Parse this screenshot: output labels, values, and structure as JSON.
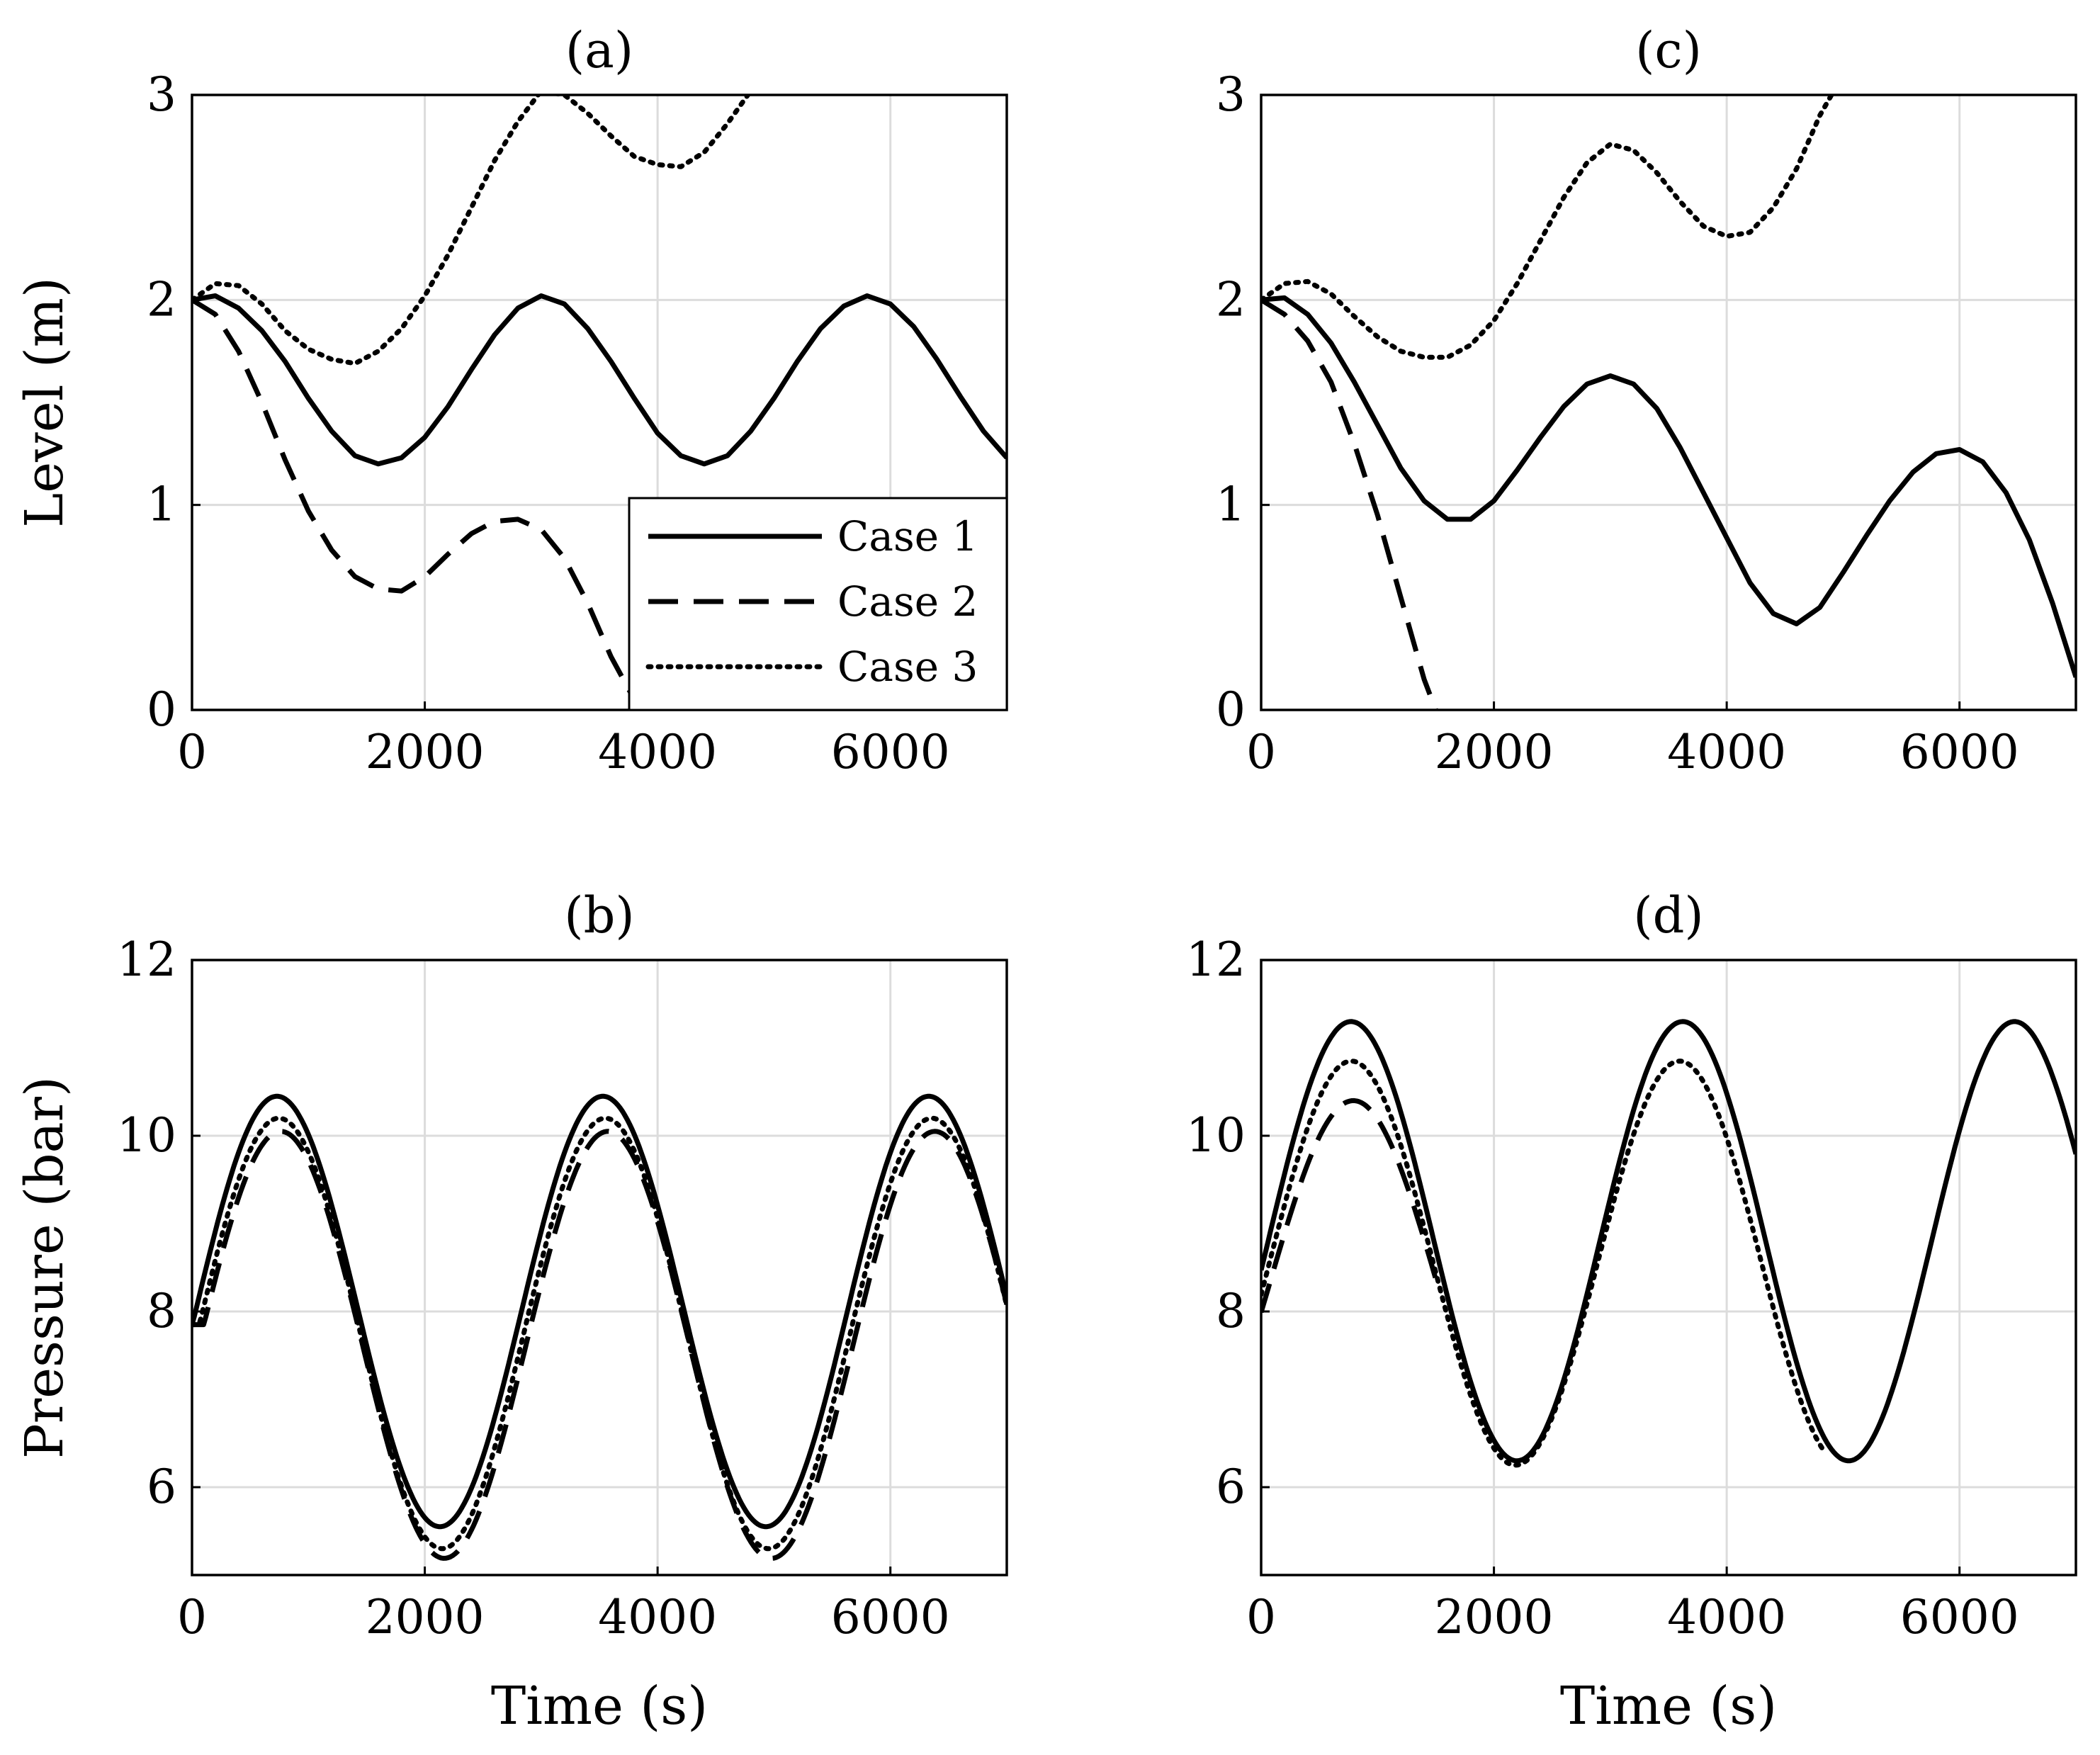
{
  "chart_data": [
    {
      "id": "a",
      "type": "line",
      "title": "(a)",
      "xlabel": "",
      "ylabel": "Level (m)",
      "xlim": [
        0,
        7000
      ],
      "ylim": [
        0,
        3
      ],
      "xticks": [
        0,
        2000,
        4000,
        6000
      ],
      "yticks": [
        0,
        1,
        2,
        3
      ],
      "grid": true,
      "legend": {
        "position": "bottom-right",
        "entries": [
          "Case 1",
          "Case 2",
          "Case 3"
        ]
      },
      "series": [
        {
          "name": "Case 1",
          "style": "solid",
          "x": [
            0,
            200,
            400,
            600,
            800,
            1000,
            1200,
            1400,
            1600,
            1800,
            2000,
            2200,
            2400,
            2600,
            2800,
            3000,
            3200,
            3400,
            3600,
            3800,
            4000,
            4200,
            4400,
            4600,
            4800,
            5000,
            5200,
            5400,
            5600,
            5800,
            6000,
            6200,
            6400,
            6600,
            6800,
            7000
          ],
          "y": [
            2.0,
            2.02,
            1.96,
            1.85,
            1.7,
            1.52,
            1.36,
            1.24,
            1.2,
            1.23,
            1.33,
            1.48,
            1.66,
            1.83,
            1.96,
            2.02,
            1.98,
            1.86,
            1.7,
            1.52,
            1.35,
            1.24,
            1.2,
            1.24,
            1.36,
            1.52,
            1.7,
            1.86,
            1.97,
            2.02,
            1.98,
            1.87,
            1.71,
            1.53,
            1.36,
            1.23
          ]
        },
        {
          "name": "Case 2",
          "style": "dashed",
          "x": [
            0,
            200,
            400,
            600,
            800,
            1000,
            1200,
            1400,
            1600,
            1800,
            2000,
            2200,
            2400,
            2600,
            2800,
            3000,
            3200,
            3400,
            3600,
            3800
          ],
          "y": [
            2.0,
            1.93,
            1.75,
            1.5,
            1.22,
            0.97,
            0.78,
            0.65,
            0.59,
            0.58,
            0.65,
            0.76,
            0.86,
            0.92,
            0.93,
            0.88,
            0.74,
            0.52,
            0.26,
            0.05
          ]
        },
        {
          "name": "Case 3",
          "style": "dotted",
          "x": [
            0,
            200,
            400,
            600,
            800,
            1000,
            1200,
            1400,
            1600,
            1800,
            2000,
            2200,
            2400,
            2600,
            2800,
            3000,
            3200,
            3400,
            3600,
            3800,
            4000,
            4200,
            4400,
            4600,
            4800
          ],
          "y": [
            2.0,
            2.08,
            2.07,
            1.98,
            1.85,
            1.76,
            1.71,
            1.69,
            1.75,
            1.86,
            2.02,
            2.22,
            2.45,
            2.68,
            2.87,
            3.02,
            3.0,
            2.91,
            2.8,
            2.7,
            2.66,
            2.65,
            2.72,
            2.86,
            3.02
          ]
        }
      ]
    },
    {
      "id": "b",
      "type": "line",
      "title": "(b)",
      "xlabel": "Time (s)",
      "ylabel": "Pressure (bar)",
      "xlim": [
        0,
        7000
      ],
      "ylim": [
        5,
        12
      ],
      "xticks": [
        0,
        2000,
        4000,
        6000
      ],
      "yticks": [
        6,
        8,
        10,
        12
      ],
      "grid": true,
      "series": [
        {
          "name": "Case 1",
          "style": "solid",
          "wave": {
            "mean": 8.0,
            "amp": 2.45,
            "period": 2800,
            "phase_zero": 30,
            "start": 0,
            "end": 7000,
            "clamp_min": 7.85
          }
        },
        {
          "name": "Case 2",
          "style": "dashed",
          "wave": {
            "mean": 7.62,
            "amp": 2.43,
            "period": 2810,
            "phase_zero": 60,
            "start": 0,
            "end": 7000,
            "clamp_min": 7.85
          }
        },
        {
          "name": "Case 3",
          "style": "dotted",
          "wave": {
            "mean": 7.75,
            "amp": 2.45,
            "period": 2805,
            "phase_zero": 45,
            "start": 0,
            "end": 7000,
            "clamp_min": 7.85
          }
        }
      ]
    },
    {
      "id": "c",
      "type": "line",
      "title": "(c)",
      "xlabel": "",
      "ylabel": "",
      "xlim": [
        0,
        7000
      ],
      "ylim": [
        0,
        3
      ],
      "xticks": [
        0,
        2000,
        4000,
        6000
      ],
      "yticks": [
        0,
        1,
        2,
        3
      ],
      "grid": true,
      "series": [
        {
          "name": "Case 1",
          "style": "solid",
          "x": [
            0,
            200,
            400,
            600,
            800,
            1000,
            1200,
            1400,
            1600,
            1800,
            2000,
            2200,
            2400,
            2600,
            2800,
            3000,
            3200,
            3400,
            3600,
            3800,
            4000,
            4200,
            4400,
            4600,
            4800,
            5000,
            5200,
            5400,
            5600,
            5800,
            6000,
            6200,
            6400,
            6600,
            6800,
            7000
          ],
          "y": [
            2.0,
            2.01,
            1.93,
            1.79,
            1.6,
            1.39,
            1.18,
            1.02,
            0.93,
            0.93,
            1.02,
            1.17,
            1.33,
            1.48,
            1.59,
            1.63,
            1.59,
            1.47,
            1.28,
            1.06,
            0.84,
            0.62,
            0.47,
            0.42,
            0.5,
            0.67,
            0.85,
            1.02,
            1.16,
            1.25,
            1.27,
            1.21,
            1.06,
            0.83,
            0.52,
            0.16
          ]
        },
        {
          "name": "Case 2",
          "style": "dashed",
          "x": [
            0,
            200,
            400,
            600,
            800,
            1000,
            1200,
            1400,
            1500
          ],
          "y": [
            2.0,
            1.93,
            1.8,
            1.6,
            1.3,
            0.95,
            0.55,
            0.15,
            0.0
          ]
        },
        {
          "name": "Case 3",
          "style": "dotted",
          "x": [
            0,
            200,
            400,
            600,
            800,
            1000,
            1200,
            1400,
            1600,
            1800,
            2000,
            2200,
            2400,
            2600,
            2800,
            3000,
            3200,
            3400,
            3600,
            3800,
            4000,
            4200,
            4400,
            4600,
            4800,
            4900
          ],
          "y": [
            2.0,
            2.08,
            2.09,
            2.03,
            1.92,
            1.82,
            1.75,
            1.72,
            1.72,
            1.78,
            1.9,
            2.08,
            2.29,
            2.5,
            2.67,
            2.76,
            2.73,
            2.62,
            2.48,
            2.36,
            2.31,
            2.33,
            2.45,
            2.64,
            2.9,
            3.0
          ]
        }
      ]
    },
    {
      "id": "d",
      "type": "line",
      "title": "(d)",
      "xlabel": "Time (s)",
      "ylabel": "",
      "xlim": [
        0,
        7000
      ],
      "ylim": [
        5,
        12
      ],
      "xticks": [
        0,
        2000,
        4000,
        6000
      ],
      "yticks": [
        6,
        8,
        10,
        12
      ],
      "grid": true,
      "series": [
        {
          "name": "Case 1",
          "style": "solid",
          "wave": {
            "mean": 8.8,
            "amp": 2.5,
            "period": 2850,
            "phase_zero": 60,
            "start": 0,
            "end": 7000,
            "clamp_min": 7.85
          }
        },
        {
          "name": "Case 2",
          "style": "dashed",
          "wave": {
            "mean": 8.35,
            "amp": 2.05,
            "period": 2850,
            "phase_zero": 80,
            "start": 0,
            "end": 1500,
            "clamp_min": 7.85
          }
        },
        {
          "name": "Case 3",
          "style": "dotted",
          "wave": {
            "mean": 8.55,
            "amp": 2.3,
            "period": 2820,
            "phase_zero": 70,
            "start": 0,
            "end": 4850,
            "clamp_min": 7.85
          }
        }
      ]
    }
  ]
}
